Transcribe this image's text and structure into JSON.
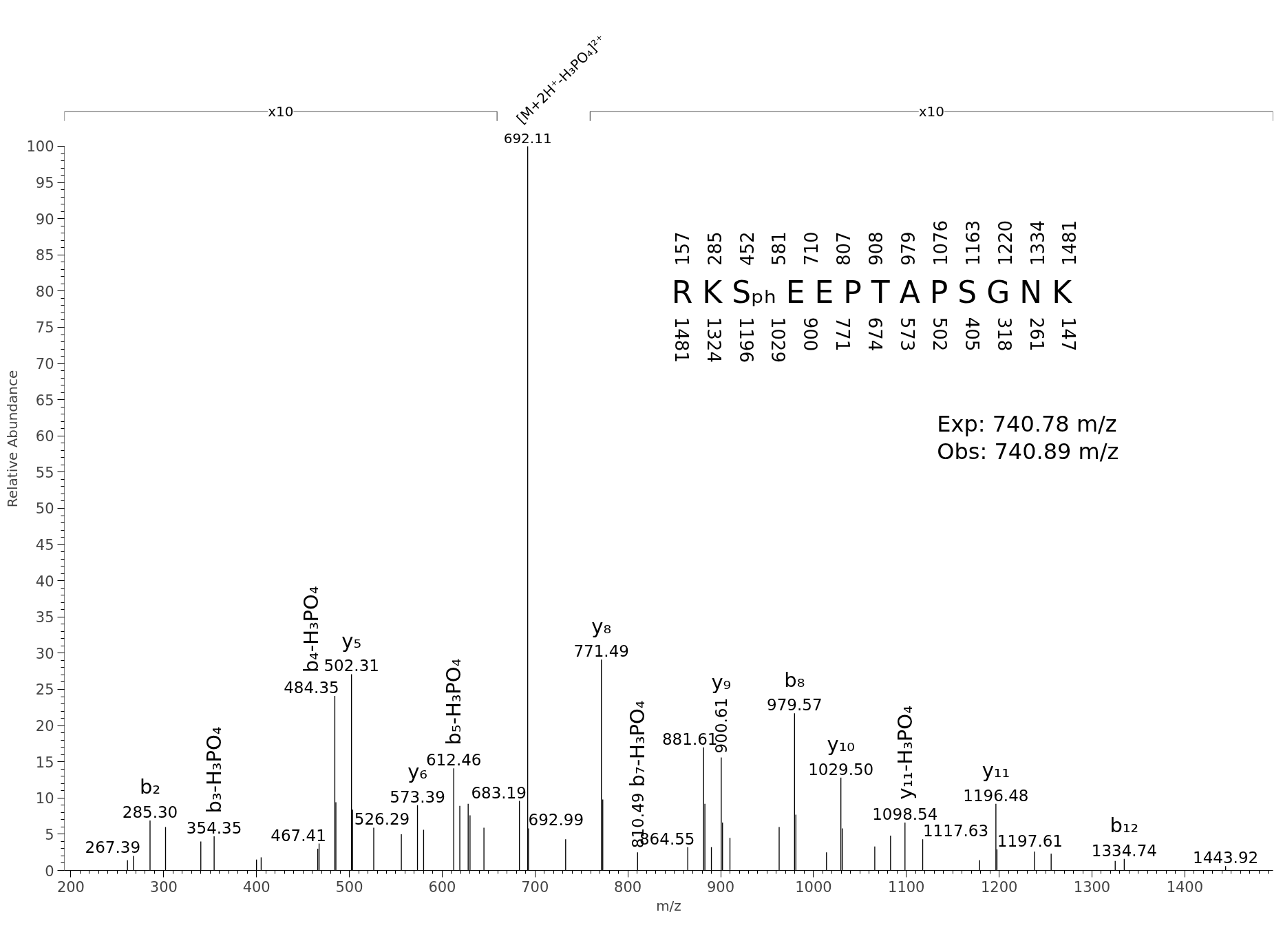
{
  "chart_data": {
    "type": "bar",
    "xlabel": "m/z",
    "ylabel": "Relative Abundance",
    "color": "#000000",
    "x": [
      261.0,
      267.39,
      285.3,
      302.0,
      340.0,
      354.35,
      400.0,
      405.0,
      466.0,
      467.41,
      484.35,
      485.5,
      502.31,
      503.5,
      526.29,
      556.0,
      573.39,
      580.0,
      612.46,
      619.0,
      628.0,
      630.0,
      645.0,
      683.19,
      692.11,
      692.99,
      733.0,
      771.49,
      773.0,
      810.49,
      864.55,
      881.61,
      883.0,
      890.0,
      900.61,
      902.0,
      910.0,
      963.0,
      979.57,
      981.0,
      1014.0,
      1029.5,
      1031.0,
      1066.0,
      1083.0,
      1098.54,
      1117.63,
      1179.0,
      1196.48,
      1197.61,
      1238.0,
      1256.0,
      1325.0,
      1334.74,
      1443.92
    ],
    "values": [
      1.4,
      2.0,
      6.9,
      6.0,
      4.0,
      4.7,
      1.5,
      1.8,
      3.0,
      3.7,
      24.1,
      9.4,
      27.1,
      8.4,
      5.9,
      5.0,
      9.0,
      5.6,
      14.1,
      8.9,
      9.2,
      7.6,
      5.9,
      9.6,
      100,
      5.8,
      4.3,
      29.1,
      9.8,
      2.5,
      3.2,
      17.0,
      9.2,
      3.2,
      15.6,
      6.6,
      4.5,
      6.0,
      21.7,
      7.7,
      2.5,
      12.8,
      5.8,
      3.3,
      4.8,
      6.6,
      4.3,
      1.4,
      9.2,
      2.9,
      2.6,
      2.3,
      1.3,
      1.6,
      0.6
    ],
    "xlim": [
      193,
      1495
    ],
    "ylim": [
      0,
      100
    ],
    "xticks": [
      200,
      300,
      400,
      500,
      600,
      700,
      800,
      900,
      1000,
      1100,
      1200,
      1300,
      1400
    ],
    "yticks": [
      0,
      5,
      10,
      15,
      20,
      25,
      30,
      35,
      40,
      45,
      50,
      55,
      60,
      65,
      70,
      75,
      80,
      85,
      90,
      95,
      100
    ],
    "annotations": [
      "R K Sₚₕ E E P T A P S G N K",
      "157 285 452 581 710 807 908 979 1076 1163 1220 1334 1481",
      "1481 1324 1196 1029 900 771 674 573 502 405 318 261 147",
      "Exp: 740.78 m/z",
      "Obs: 740.89 m/z",
      "x10",
      "x10",
      {
        "text": "692.11",
        "x": 692.11,
        "y": 100
      },
      {
        "text": "[M+2H⁺-H₃PO₄]²⁺",
        "x": 692.11,
        "y": 100
      },
      {
        "text": "267.39",
        "x": 267.39,
        "y": 2.0
      },
      {
        "text": "285.30",
        "x": 285.3,
        "y": 6.9
      },
      {
        "text": "b₂",
        "x": 285.3,
        "y": 6.9
      },
      {
        "text": "354.35",
        "x": 354.35,
        "y": 4.7
      },
      {
        "text": "b₃-H₃PO₄",
        "x": 354.35,
        "y": 4.7
      },
      {
        "text": "467.41",
        "x": 467.41,
        "y": 3.7
      },
      {
        "text": "484.35",
        "x": 484.35,
        "y": 24.1
      },
      {
        "text": "b₄-H₃PO₄",
        "x": 484.35,
        "y": 24.1
      },
      {
        "text": "502.31",
        "x": 502.31,
        "y": 27.1
      },
      {
        "text": "y₅",
        "x": 502.31,
        "y": 27.1
      },
      {
        "text": "526.29",
        "x": 526.29,
        "y": 5.9
      },
      {
        "text": "573.39",
        "x": 573.39,
        "y": 9.0
      },
      {
        "text": "y₆",
        "x": 573.39,
        "y": 9.0
      },
      {
        "text": "612.46",
        "x": 612.46,
        "y": 14.1
      },
      {
        "text": "b₅-H₃PO₄",
        "x": 612.46,
        "y": 14.1
      },
      {
        "text": "683.19",
        "x": 683.19,
        "y": 9.6
      },
      {
        "text": "692.99",
        "x": 692.99,
        "y": 5.8
      },
      {
        "text": "771.49",
        "x": 771.49,
        "y": 29.1
      },
      {
        "text": "y₈",
        "x": 771.49,
        "y": 29.1
      },
      {
        "text": "810.49",
        "x": 810.49,
        "y": 2.5
      },
      "b₇-H₃PO₄",
      {
        "text": "864.55",
        "x": 864.55,
        "y": 3.2
      },
      {
        "text": "881.61",
        "x": 881.61,
        "y": 17.0
      },
      {
        "text": "900.61",
        "x": 900.61,
        "y": 15.6
      },
      "y₉",
      {
        "text": "979.57",
        "x": 979.57,
        "y": 21.7
      },
      {
        "text": "b₈",
        "x": 979.57,
        "y": 21.7
      },
      {
        "text": "1029.50",
        "x": 1029.5,
        "y": 12.8
      },
      {
        "text": "y₁₀",
        "x": 1029.5,
        "y": 12.8
      },
      {
        "text": "1098.54",
        "x": 1098.54,
        "y": 6.6
      },
      {
        "text": "y₁₁-H₃PO₄",
        "x": 1098.54,
        "y": 6.6
      },
      {
        "text": "1117.63",
        "x": 1117.63,
        "y": 4.3
      },
      {
        "text": "1196.48",
        "x": 1196.48,
        "y": 9.2
      },
      {
        "text": "y₁₁",
        "x": 1196.48,
        "y": 9.2
      },
      {
        "text": "1197.61",
        "x": 1197.61,
        "y": 2.9
      },
      {
        "text": "1334.74",
        "x": 1334.74,
        "y": 1.6
      },
      {
        "text": "b₁₂",
        "x": 1334.74,
        "y": 1.6
      },
      {
        "text": "1443.92",
        "x": 1443.92,
        "y": 0.6
      }
    ]
  }
}
